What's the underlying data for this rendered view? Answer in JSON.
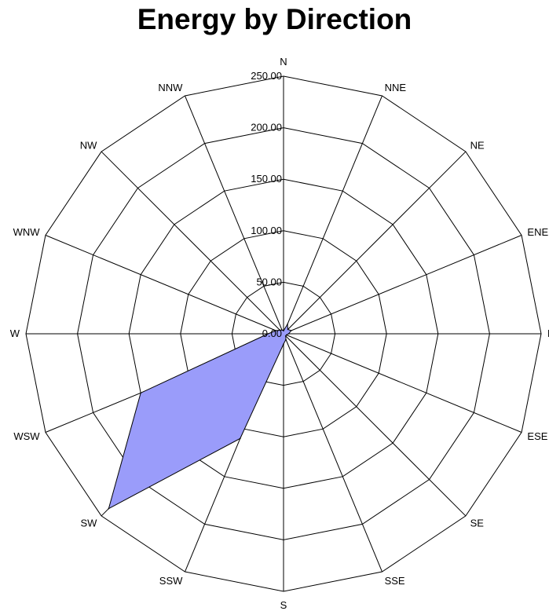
{
  "chart_data": {
    "type": "radar",
    "title": "Energy by Direction",
    "directions": [
      "N",
      "NNE",
      "NE",
      "ENE",
      "E",
      "ESE",
      "SE",
      "SSE",
      "S",
      "SSW",
      "SW",
      "WSW",
      "W",
      "WNW",
      "NW",
      "NNW"
    ],
    "radial_ticks": [
      "0.00",
      "50.00",
      "100.00",
      "150.00",
      "200.00",
      "250.00"
    ],
    "rlim": [
      0,
      250
    ],
    "grid": true,
    "series": [
      {
        "values": [
          3,
          10,
          6,
          8,
          5,
          3,
          3,
          6,
          10,
          110,
          240,
          150,
          15,
          8,
          5,
          4
        ]
      }
    ],
    "colors": {
      "fill": "#9a9cfa",
      "stroke": "#000000",
      "grid": "#000000"
    }
  }
}
